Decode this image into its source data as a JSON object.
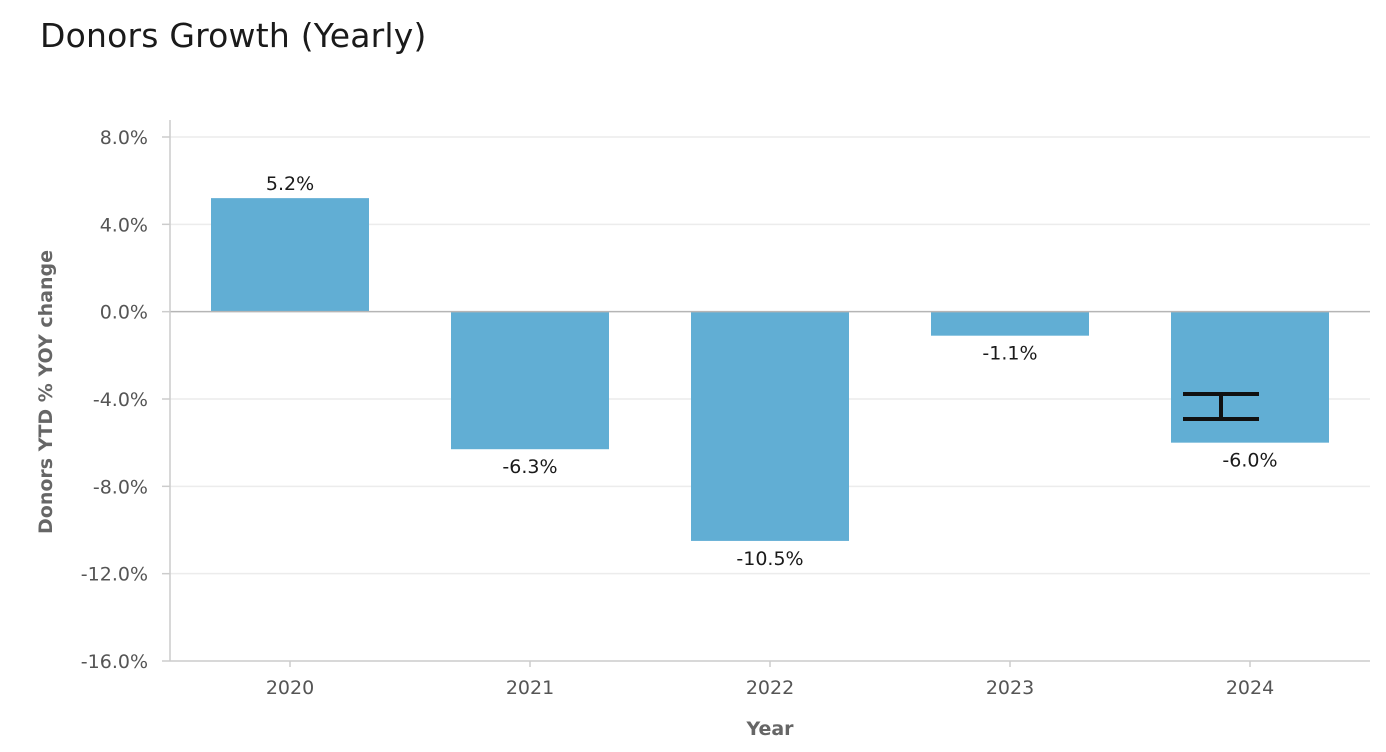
{
  "chart_data": {
    "type": "bar",
    "title": "Donors Growth (Yearly)",
    "xlabel": "Year",
    "ylabel": "Donors YTD % YOY change",
    "categories": [
      "2020",
      "2021",
      "2022",
      "2023",
      "2024"
    ],
    "values": [
      5.2,
      -6.3,
      -10.5,
      -1.1,
      -6.0
    ],
    "data_labels": [
      "5.2%",
      "-6.3%",
      "-10.5%",
      "-1.1%",
      "-6.0%"
    ],
    "ylim": [
      -16,
      8
    ],
    "yticks": [
      8,
      4,
      0,
      -4,
      -8,
      -12,
      -16
    ],
    "ytick_labels": [
      "8.0%",
      "4.0%",
      "0.0%",
      "-4.0%",
      "-8.0%",
      "-12.0%",
      "-16.0%"
    ],
    "grid": true,
    "bar_color": "#61AED4",
    "cursor": "text-cursor-icon"
  }
}
